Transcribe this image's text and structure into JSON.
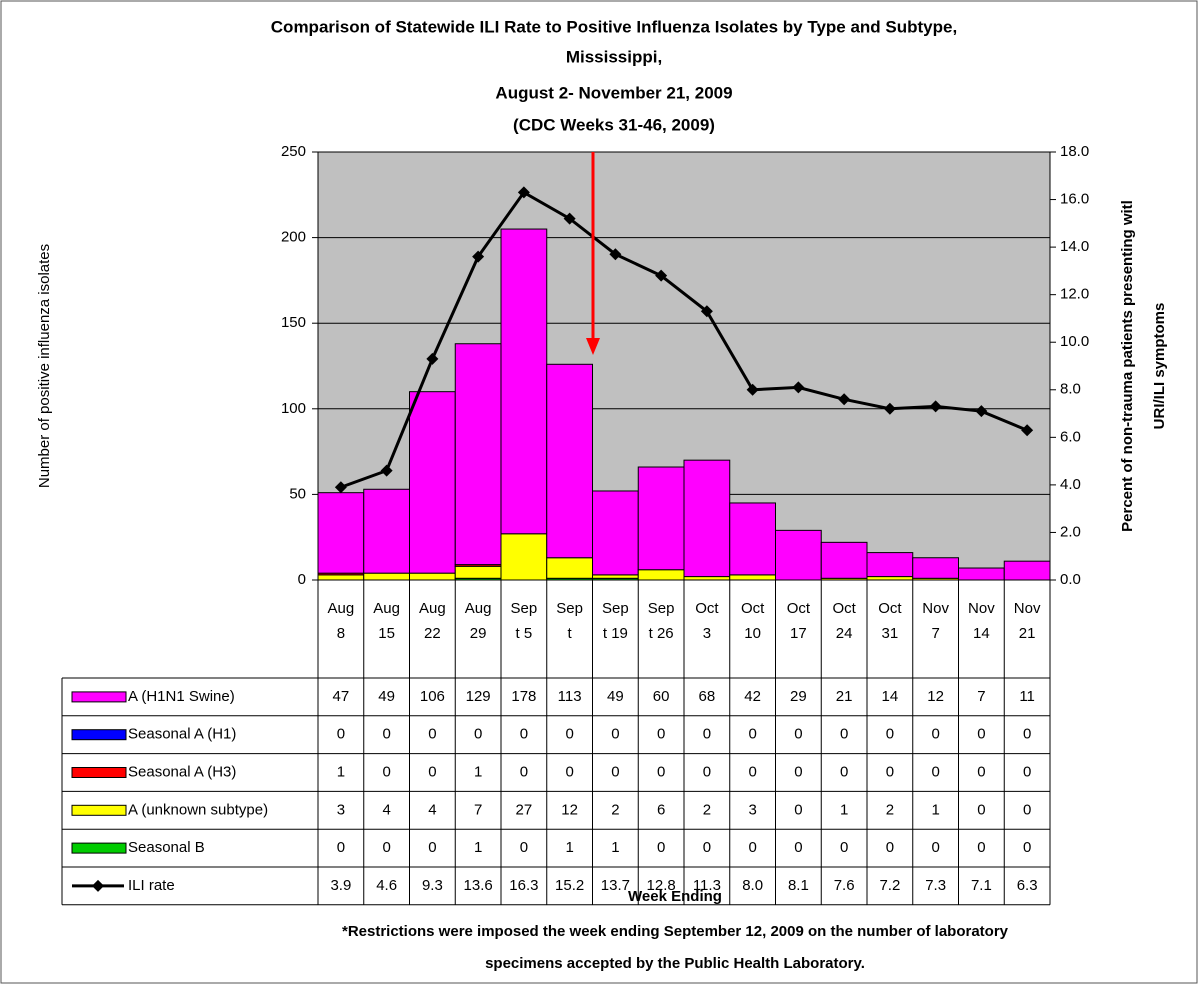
{
  "chart_data": {
    "type": "bar",
    "title_lines": [
      "Comparison of Statewide ILI Rate to Positive Influenza Isolates by Type and Subtype,",
      "Mississippi,",
      "August 2- November 21, 2009",
      "(CDC Weeks 31-46, 2009)"
    ],
    "ylabel": "Number of positive influenza isolates",
    "y2label_lines": [
      "Percent of non-trauma patients presenting witl",
      "URI/ILI symptoms"
    ],
    "xlabel": "Week Ending",
    "footnote_lines": [
      "*Restrictions were imposed the week ending September 12, 2009 on the number of laboratory",
      "specimens accepted by the Public Health Laboratory."
    ],
    "categories": [
      "Aug 8",
      "Aug 15",
      "Aug 22",
      "Aug 29",
      "Sept 5",
      "Sept",
      "Sept 19",
      "Sept 26",
      "Oct 3",
      "Oct 10",
      "Oct 17",
      "Oct 24",
      "Oct 31",
      "Nov 7",
      "Nov 14",
      "Nov 21"
    ],
    "stacked": true,
    "series": [
      {
        "name": "A (H1N1 Swine)",
        "color": "#ff00ff",
        "values": [
          47,
          49,
          106,
          129,
          178,
          113,
          49,
          60,
          68,
          42,
          29,
          21,
          14,
          12,
          7,
          11
        ]
      },
      {
        "name": "Seasonal A (H1)",
        "color": "#0000ff",
        "values": [
          0,
          0,
          0,
          0,
          0,
          0,
          0,
          0,
          0,
          0,
          0,
          0,
          0,
          0,
          0,
          0
        ]
      },
      {
        "name": "Seasonal A (H3)",
        "color": "#ff0000",
        "values": [
          1,
          0,
          0,
          1,
          0,
          0,
          0,
          0,
          0,
          0,
          0,
          0,
          0,
          0,
          0,
          0
        ]
      },
      {
        "name": "A (unknown subtype)",
        "color": "#ffff00",
        "values": [
          3,
          4,
          4,
          7,
          27,
          12,
          2,
          6,
          2,
          3,
          0,
          1,
          2,
          1,
          0,
          0
        ]
      },
      {
        "name": "Seasonal B",
        "color": "#00cc00",
        "values": [
          0,
          0,
          0,
          1,
          0,
          1,
          1,
          0,
          0,
          0,
          0,
          0,
          0,
          0,
          0,
          0
        ]
      },
      {
        "name": "ILI rate",
        "color": "#000000",
        "type": "line",
        "axis": "y2",
        "values": [
          3.9,
          4.6,
          9.3,
          13.6,
          16.3,
          15.2,
          13.7,
          12.8,
          11.3,
          8.0,
          8.1,
          7.6,
          7.2,
          7.3,
          7.1,
          6.3
        ],
        "value_labels": [
          "3.9",
          "4.6",
          "9.3",
          "13.6",
          "16.3",
          "15.2",
          "13.7",
          "12.8",
          "11.3",
          "8.0",
          "8.1",
          "7.6",
          "7.2",
          "7.3",
          "7.1",
          "6.3"
        ]
      }
    ],
    "ylim": [
      0,
      250
    ],
    "yticks": [
      0,
      50,
      100,
      150,
      200,
      250
    ],
    "y2lim": [
      0,
      18
    ],
    "y2ticks": [
      {
        "value": 0,
        "label": "0.0"
      },
      {
        "value": 2,
        "label": "2.0"
      },
      {
        "value": 4,
        "label": "4.0"
      },
      {
        "value": 6,
        "label": "6.0"
      },
      {
        "value": 8,
        "label": "8.0"
      },
      {
        "value": 10,
        "label": "10.0"
      },
      {
        "value": 12,
        "label": "12.0"
      },
      {
        "value": 14,
        "label": "14.0"
      },
      {
        "value": 16,
        "label": "16.0"
      },
      {
        "value": 18,
        "label": "18.0"
      }
    ],
    "grid": true,
    "plot_background": "#c0c0c0"
  }
}
